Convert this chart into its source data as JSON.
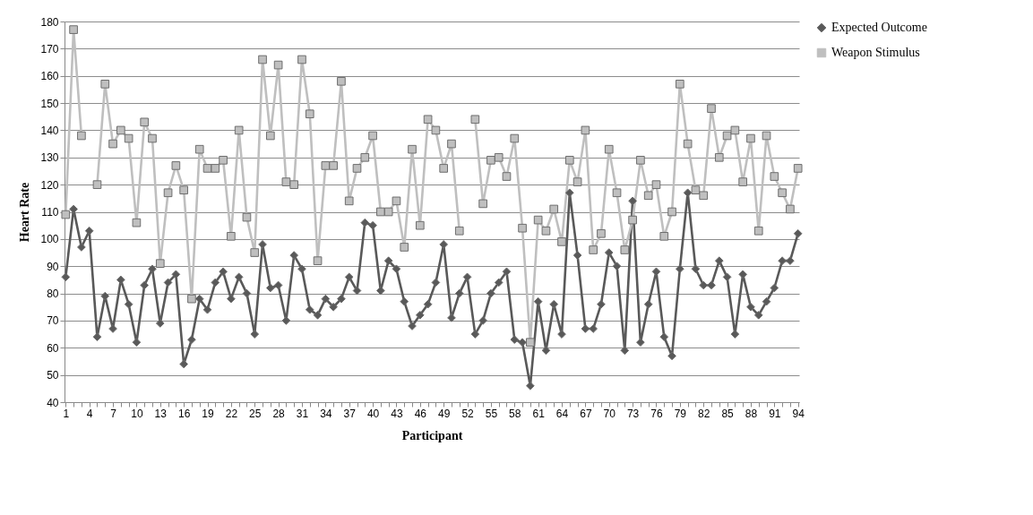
{
  "chart_data": {
    "type": "line",
    "xlabel": "Participant",
    "ylabel": "Heart Rate",
    "categories": [
      "1",
      null,
      null,
      "4",
      null,
      null,
      "7",
      null,
      null,
      "10",
      null,
      null,
      "13",
      null,
      null,
      "16",
      null,
      null,
      "19",
      null,
      null,
      "22",
      null,
      null,
      "25",
      null,
      null,
      "28",
      null,
      null,
      "31",
      null,
      null,
      "34",
      null,
      null,
      "37",
      null,
      null,
      "40",
      null,
      null,
      "43",
      null,
      null,
      "46",
      null,
      null,
      "49",
      null,
      null,
      "52",
      null,
      null,
      "55",
      null,
      null,
      "58",
      null,
      null,
      "61",
      null,
      null,
      "64",
      null,
      null,
      "67",
      null,
      null,
      "70",
      null,
      null,
      "73",
      null,
      null,
      "76",
      null,
      null,
      "79",
      null,
      null,
      "82",
      null,
      null,
      "85",
      null,
      null,
      "88",
      null,
      null,
      "91",
      null,
      null,
      "94"
    ],
    "series": [
      {
        "name": "Expected Outcome",
        "color": "#595959",
        "marker": "diamond",
        "values": [
          86,
          111,
          97,
          103,
          64,
          79,
          67,
          85,
          76,
          62,
          83,
          89,
          69,
          84,
          87,
          54,
          63,
          78,
          74,
          84,
          88,
          78,
          86,
          80,
          65,
          98,
          82,
          83,
          70,
          94,
          89,
          74,
          72,
          78,
          75,
          78,
          86,
          81,
          106,
          105,
          81,
          92,
          89,
          77,
          68,
          72,
          76,
          84,
          98,
          71,
          80,
          86,
          65,
          70,
          80,
          84,
          88,
          63,
          62,
          46,
          77,
          59,
          76,
          65,
          117,
          94,
          67,
          67,
          76,
          95,
          90,
          59,
          114,
          62,
          76,
          88,
          64,
          57,
          89,
          117,
          89,
          83,
          83,
          92,
          86,
          65,
          87,
          75,
          72,
          77,
          82,
          92,
          92,
          102
        ]
      },
      {
        "name": "Weapon Stimulus",
        "color": "#bfbfbf",
        "marker": "square",
        "values": [
          109,
          177,
          138,
          null,
          120,
          157,
          135,
          140,
          137,
          106,
          143,
          137,
          91,
          117,
          127,
          118,
          78,
          133,
          126,
          126,
          129,
          101,
          140,
          108,
          95,
          166,
          138,
          164,
          121,
          120,
          166,
          146,
          92,
          127,
          127,
          158,
          114,
          126,
          130,
          138,
          110,
          110,
          114,
          97,
          133,
          105,
          144,
          140,
          126,
          135,
          103,
          null,
          144,
          113,
          129,
          130,
          123,
          137,
          104,
          62,
          107,
          103,
          111,
          99,
          129,
          121,
          140,
          96,
          102,
          133,
          117,
          96,
          107,
          129,
          116,
          120,
          101,
          110,
          157,
          135,
          118,
          116,
          148,
          130,
          138,
          140,
          121,
          137,
          103,
          138,
          123,
          117,
          111,
          126
        ]
      }
    ],
    "ylim": [
      40,
      180
    ],
    "yticks": [
      40,
      50,
      60,
      70,
      80,
      90,
      100,
      110,
      120,
      130,
      140,
      150,
      160,
      170,
      180
    ],
    "grid": "y",
    "legend": "right",
    "line_style": "solid"
  }
}
